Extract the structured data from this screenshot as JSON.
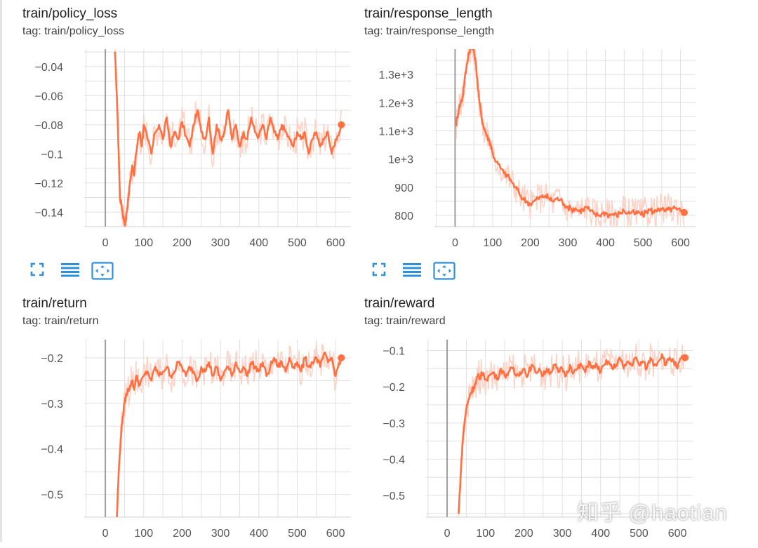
{
  "colors": {
    "smoothed": "#ff7043",
    "raw": "#fbd3c7",
    "grid": "#e0e0e0",
    "axis": "#9e9e9e",
    "tick_text": "#555555",
    "icon": "#2f8fd8"
  },
  "icons": [
    "fit-domain-icon",
    "toggle-log-icon",
    "expand-icon"
  ],
  "watermark": "知乎 @haotian",
  "chart_data": [
    {
      "type": "line",
      "title": "train/policy_loss",
      "tag": "tag: train/policy_loss",
      "xlabel": "",
      "ylabel": "",
      "xlim": [
        -55,
        640
      ],
      "ylim": [
        -0.15,
        -0.028
      ],
      "xticks": [
        0,
        100,
        200,
        300,
        400,
        500,
        600
      ],
      "x_tick_labels": [
        "0",
        "100",
        "200",
        "300",
        "400",
        "500",
        "600"
      ],
      "yticks": [
        -0.14,
        -0.12,
        -0.1,
        -0.08,
        -0.06,
        -0.04
      ],
      "y_tick_labels": [
        "−0.14",
        "−0.12",
        "−0.1",
        "−0.08",
        "−0.06",
        "−0.04"
      ],
      "grid": true,
      "series": [
        {
          "x": [
            25,
            30,
            35,
            38,
            42,
            45,
            48,
            52,
            56,
            60,
            65,
            70,
            75,
            80,
            85,
            90,
            95,
            100,
            110,
            120,
            130,
            140,
            150,
            160,
            170,
            180,
            190,
            200,
            210,
            220,
            230,
            240,
            250,
            260,
            270,
            280,
            290,
            300,
            310,
            320,
            330,
            340,
            350,
            360,
            370,
            380,
            390,
            400,
            410,
            420,
            430,
            440,
            450,
            460,
            470,
            480,
            490,
            500,
            510,
            520,
            530,
            540,
            550,
            560,
            570,
            580,
            590,
            600,
            610,
            615
          ],
          "y": [
            -0.03,
            -0.06,
            -0.1,
            -0.13,
            -0.135,
            -0.14,
            -0.145,
            -0.148,
            -0.14,
            -0.13,
            -0.118,
            -0.108,
            -0.115,
            -0.1,
            -0.09,
            -0.085,
            -0.095,
            -0.08,
            -0.09,
            -0.1,
            -0.085,
            -0.08,
            -0.09,
            -0.075,
            -0.095,
            -0.085,
            -0.09,
            -0.078,
            -0.088,
            -0.095,
            -0.08,
            -0.07,
            -0.085,
            -0.09,
            -0.075,
            -0.1,
            -0.08,
            -0.09,
            -0.085,
            -0.07,
            -0.09,
            -0.08,
            -0.095,
            -0.085,
            -0.09,
            -0.075,
            -0.085,
            -0.088,
            -0.08,
            -0.09,
            -0.075,
            -0.085,
            -0.09,
            -0.08,
            -0.085,
            -0.09,
            -0.095,
            -0.085,
            -0.09,
            -0.085,
            -0.1,
            -0.09,
            -0.085,
            -0.095,
            -0.09,
            -0.085,
            -0.1,
            -0.09,
            -0.085,
            -0.08
          ]
        }
      ]
    },
    {
      "type": "line",
      "title": "train/response_length",
      "tag": "tag: train/response_length",
      "xlabel": "",
      "ylabel": "",
      "xlim": [
        -55,
        640
      ],
      "ylim": [
        760,
        1390
      ],
      "xticks": [
        0,
        100,
        200,
        300,
        400,
        500,
        600
      ],
      "x_tick_labels": [
        "0",
        "100",
        "200",
        "300",
        "400",
        "500",
        "600"
      ],
      "yticks": [
        800,
        900,
        1000,
        1100,
        1200,
        1300
      ],
      "y_tick_labels": [
        "800",
        "900",
        "1e+3",
        "1.1e+3",
        "1.2e+3",
        "1.3e+3"
      ],
      "grid": true,
      "series": [
        {
          "x": [
            2,
            6,
            10,
            15,
            20,
            25,
            30,
            35,
            40,
            45,
            50,
            55,
            60,
            65,
            70,
            75,
            80,
            85,
            90,
            95,
            100,
            110,
            120,
            130,
            140,
            150,
            160,
            170,
            180,
            190,
            200,
            210,
            220,
            230,
            240,
            250,
            260,
            270,
            280,
            290,
            300,
            310,
            320,
            330,
            340,
            350,
            360,
            370,
            380,
            390,
            400,
            410,
            420,
            430,
            440,
            450,
            460,
            470,
            480,
            490,
            500,
            510,
            520,
            530,
            540,
            550,
            560,
            570,
            580,
            590,
            600,
            610
          ],
          "y": [
            1120,
            1150,
            1180,
            1200,
            1220,
            1280,
            1320,
            1370,
            1390,
            1395,
            1385,
            1340,
            1270,
            1200,
            1150,
            1120,
            1100,
            1080,
            1070,
            1050,
            1020,
            990,
            970,
            950,
            940,
            920,
            900,
            880,
            860,
            850,
            840,
            850,
            860,
            865,
            870,
            860,
            850,
            860,
            855,
            840,
            830,
            820,
            825,
            815,
            820,
            830,
            815,
            805,
            800,
            805,
            810,
            800,
            805,
            800,
            810,
            815,
            808,
            812,
            805,
            810,
            800,
            815,
            820,
            810,
            825,
            820,
            815,
            820,
            825,
            820,
            815,
            810
          ]
        }
      ]
    },
    {
      "type": "line",
      "title": "train/return",
      "tag": "tag: train/return",
      "xlabel": "",
      "ylabel": "",
      "xlim": [
        -55,
        640
      ],
      "ylim": [
        -0.55,
        -0.16
      ],
      "xticks": [
        0,
        100,
        200,
        300,
        400,
        500,
        600
      ],
      "x_tick_labels": [
        "0",
        "100",
        "200",
        "300",
        "400",
        "500",
        "600"
      ],
      "yticks": [
        -0.5,
        -0.4,
        -0.3,
        -0.2
      ],
      "y_tick_labels": [
        "−0.5",
        "−0.4",
        "−0.3",
        "−0.2"
      ],
      "grid": true,
      "series": [
        {
          "x": [
            30,
            35,
            40,
            45,
            50,
            55,
            60,
            65,
            70,
            75,
            80,
            85,
            90,
            100,
            110,
            120,
            130,
            140,
            150,
            160,
            170,
            180,
            190,
            200,
            210,
            220,
            230,
            240,
            250,
            260,
            270,
            280,
            290,
            300,
            310,
            320,
            330,
            340,
            350,
            360,
            370,
            380,
            390,
            400,
            410,
            420,
            430,
            440,
            450,
            460,
            470,
            480,
            490,
            500,
            510,
            520,
            530,
            540,
            550,
            560,
            570,
            580,
            590,
            600,
            610,
            615
          ],
          "y": [
            -0.55,
            -0.45,
            -0.38,
            -0.33,
            -0.3,
            -0.28,
            -0.27,
            -0.26,
            -0.25,
            -0.27,
            -0.24,
            -0.25,
            -0.26,
            -0.24,
            -0.23,
            -0.25,
            -0.22,
            -0.24,
            -0.23,
            -0.22,
            -0.24,
            -0.23,
            -0.21,
            -0.22,
            -0.24,
            -0.22,
            -0.23,
            -0.25,
            -0.22,
            -0.23,
            -0.21,
            -0.24,
            -0.22,
            -0.25,
            -0.23,
            -0.22,
            -0.24,
            -0.21,
            -0.23,
            -0.22,
            -0.24,
            -0.21,
            -0.22,
            -0.23,
            -0.21,
            -0.24,
            -0.22,
            -0.2,
            -0.22,
            -0.21,
            -0.23,
            -0.2,
            -0.22,
            -0.21,
            -0.23,
            -0.2,
            -0.22,
            -0.21,
            -0.2,
            -0.22,
            -0.19,
            -0.21,
            -0.2,
            -0.24,
            -0.21,
            -0.2
          ]
        }
      ]
    },
    {
      "type": "line",
      "title": "train/reward",
      "tag": "tag: train/reward",
      "xlabel": "",
      "ylabel": "",
      "xlim": [
        -55,
        640
      ],
      "ylim": [
        -0.56,
        -0.07
      ],
      "xticks": [
        0,
        100,
        200,
        300,
        400,
        500,
        600
      ],
      "x_tick_labels": [
        "0",
        "100",
        "200",
        "300",
        "400",
        "500",
        "600"
      ],
      "yticks": [
        -0.5,
        -0.4,
        -0.3,
        -0.2,
        -0.1
      ],
      "y_tick_labels": [
        "−0.5",
        "−0.4",
        "−0.3",
        "−0.2",
        "−0.1"
      ],
      "grid": true,
      "series": [
        {
          "x": [
            30,
            35,
            40,
            45,
            50,
            55,
            60,
            65,
            70,
            75,
            80,
            85,
            90,
            100,
            110,
            120,
            130,
            140,
            150,
            160,
            170,
            180,
            190,
            200,
            210,
            220,
            230,
            240,
            250,
            260,
            270,
            280,
            290,
            300,
            310,
            320,
            330,
            340,
            350,
            360,
            370,
            380,
            390,
            400,
            410,
            420,
            430,
            440,
            450,
            460,
            470,
            480,
            490,
            500,
            510,
            520,
            530,
            540,
            550,
            560,
            570,
            580,
            590,
            600,
            610,
            620
          ],
          "y": [
            -0.55,
            -0.45,
            -0.36,
            -0.3,
            -0.26,
            -0.24,
            -0.22,
            -0.21,
            -0.2,
            -0.19,
            -0.17,
            -0.18,
            -0.16,
            -0.18,
            -0.17,
            -0.16,
            -0.18,
            -0.15,
            -0.17,
            -0.16,
            -0.15,
            -0.17,
            -0.16,
            -0.15,
            -0.17,
            -0.14,
            -0.16,
            -0.15,
            -0.17,
            -0.15,
            -0.16,
            -0.14,
            -0.16,
            -0.15,
            -0.17,
            -0.14,
            -0.16,
            -0.15,
            -0.14,
            -0.16,
            -0.13,
            -0.15,
            -0.14,
            -0.16,
            -0.14,
            -0.13,
            -0.15,
            -0.14,
            -0.12,
            -0.15,
            -0.13,
            -0.14,
            -0.12,
            -0.14,
            -0.13,
            -0.15,
            -0.12,
            -0.14,
            -0.13,
            -0.11,
            -0.14,
            -0.12,
            -0.13,
            -0.15,
            -0.12,
            -0.12
          ]
        }
      ]
    }
  ]
}
